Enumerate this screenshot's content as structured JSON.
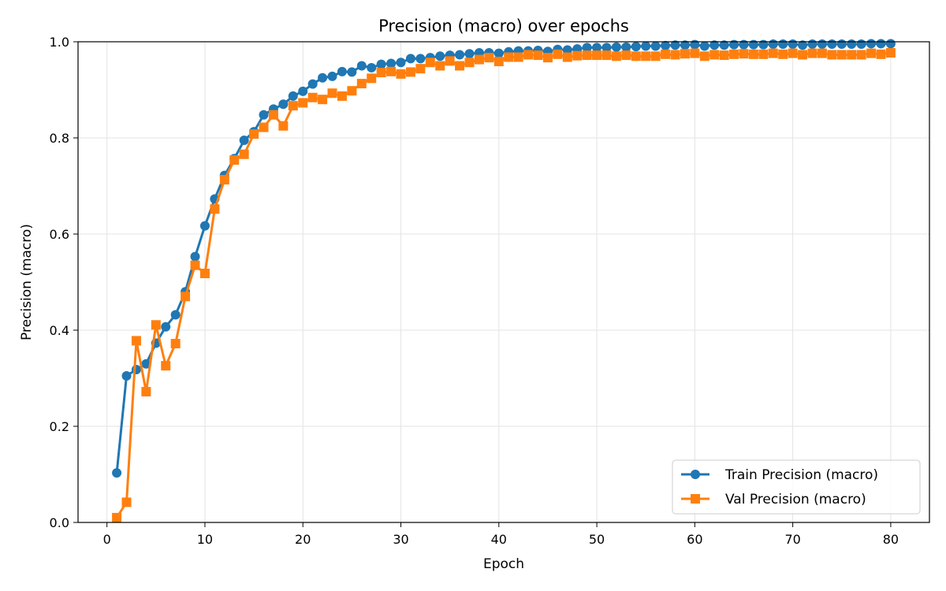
{
  "chart_data": {
    "type": "line",
    "title": "Precision (macro) over epochs",
    "xlabel": "Epoch",
    "ylabel": "Precision (macro)",
    "xlim": [
      -2.95,
      83.95
    ],
    "ylim": [
      0.0,
      1.0
    ],
    "xticks": [
      0,
      10,
      20,
      30,
      40,
      50,
      60,
      70,
      80
    ],
    "yticks": [
      0.0,
      0.2,
      0.4,
      0.6,
      0.8,
      1.0
    ],
    "ytick_labels": [
      "0.0",
      "0.2",
      "0.4",
      "0.6",
      "0.8",
      "1.0"
    ],
    "grid": true,
    "legend_placement": "lower-right",
    "x": [
      1,
      2,
      3,
      4,
      5,
      6,
      7,
      8,
      9,
      10,
      11,
      12,
      13,
      14,
      15,
      16,
      17,
      18,
      19,
      20,
      21,
      22,
      23,
      24,
      25,
      26,
      27,
      28,
      29,
      30,
      31,
      32,
      33,
      34,
      35,
      36,
      37,
      38,
      39,
      40,
      41,
      42,
      43,
      44,
      45,
      46,
      47,
      48,
      49,
      50,
      51,
      52,
      53,
      54,
      55,
      56,
      57,
      58,
      59,
      60,
      61,
      62,
      63,
      64,
      65,
      66,
      67,
      68,
      69,
      70,
      71,
      72,
      73,
      74,
      75,
      76,
      77,
      78,
      79,
      80
    ],
    "series": [
      {
        "name": "Train Precision (macro)",
        "color": "#1f77b4",
        "marker": "circle",
        "values": [
          0.103,
          0.305,
          0.318,
          0.33,
          0.373,
          0.407,
          0.432,
          0.48,
          0.553,
          0.617,
          0.673,
          0.722,
          0.757,
          0.795,
          0.813,
          0.848,
          0.86,
          0.87,
          0.887,
          0.897,
          0.912,
          0.925,
          0.928,
          0.938,
          0.937,
          0.95,
          0.946,
          0.953,
          0.955,
          0.957,
          0.965,
          0.965,
          0.967,
          0.97,
          0.972,
          0.973,
          0.975,
          0.977,
          0.977,
          0.976,
          0.979,
          0.981,
          0.981,
          0.982,
          0.98,
          0.984,
          0.983,
          0.985,
          0.988,
          0.988,
          0.988,
          0.989,
          0.989,
          0.99,
          0.991,
          0.991,
          0.992,
          0.993,
          0.993,
          0.994,
          0.991,
          0.993,
          0.993,
          0.994,
          0.994,
          0.994,
          0.994,
          0.995,
          0.995,
          0.995,
          0.993,
          0.995,
          0.995,
          0.995,
          0.995,
          0.995,
          0.995,
          0.996,
          0.996,
          0.996
        ]
      },
      {
        "name": "Val Precision (macro)",
        "color": "#ff7f0e",
        "marker": "square",
        "values": [
          0.01,
          0.042,
          0.378,
          0.272,
          0.411,
          0.326,
          0.372,
          0.47,
          0.535,
          0.518,
          0.652,
          0.713,
          0.754,
          0.766,
          0.808,
          0.822,
          0.848,
          0.825,
          0.867,
          0.873,
          0.884,
          0.88,
          0.893,
          0.887,
          0.898,
          0.913,
          0.924,
          0.936,
          0.938,
          0.933,
          0.937,
          0.944,
          0.957,
          0.95,
          0.96,
          0.95,
          0.957,
          0.963,
          0.967,
          0.959,
          0.968,
          0.968,
          0.973,
          0.972,
          0.967,
          0.974,
          0.968,
          0.971,
          0.972,
          0.972,
          0.972,
          0.97,
          0.972,
          0.97,
          0.97,
          0.97,
          0.974,
          0.973,
          0.975,
          0.976,
          0.97,
          0.973,
          0.972,
          0.974,
          0.975,
          0.974,
          0.974,
          0.976,
          0.974,
          0.976,
          0.973,
          0.976,
          0.976,
          0.973,
          0.973,
          0.973,
          0.973,
          0.976,
          0.974,
          0.977
        ]
      }
    ]
  }
}
